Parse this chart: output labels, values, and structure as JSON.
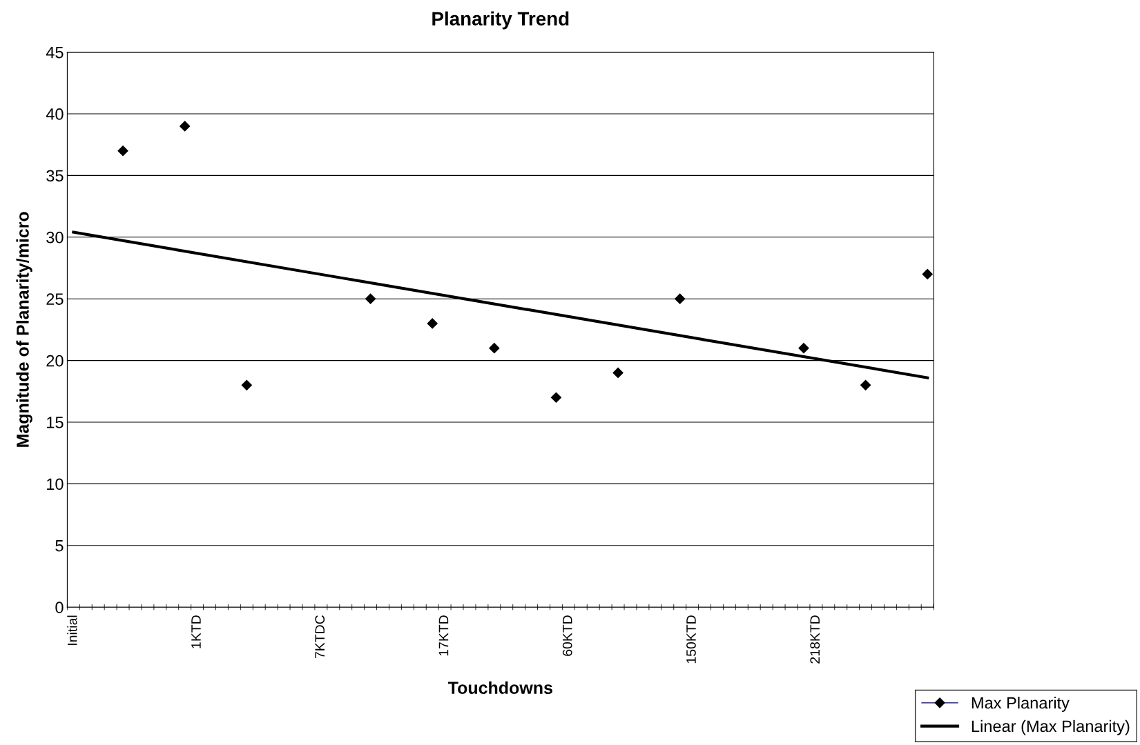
{
  "chart_data": {
    "type": "scatter",
    "title": "Planarity Trend",
    "xlabel": "Touchdowns",
    "ylabel": "Magnitude of Planarity/micro",
    "categories": [
      "Initial",
      null,
      null,
      null,
      null,
      null,
      null,
      null,
      null,
      null,
      "1KTD",
      null,
      null,
      null,
      null,
      null,
      null,
      null,
      null,
      null,
      "7KTDC",
      null,
      null,
      null,
      null,
      null,
      null,
      null,
      null,
      null,
      "17KTD",
      null,
      null,
      null,
      null,
      null,
      null,
      null,
      null,
      null,
      "60KTD",
      null,
      null,
      null,
      null,
      null,
      null,
      null,
      null,
      null,
      "150KTD",
      null,
      null,
      null,
      null,
      null,
      null,
      null,
      null,
      null,
      "218KTD",
      null,
      null,
      null,
      null,
      null,
      null,
      null,
      null,
      null
    ],
    "series": [
      {
        "name": "Max Planarity",
        "color": "#000000",
        "marker": "diamond",
        "values": [
          null,
          null,
          null,
          null,
          37,
          null,
          null,
          null,
          null,
          39,
          null,
          null,
          null,
          null,
          18,
          null,
          null,
          null,
          null,
          null,
          null,
          null,
          null,
          null,
          25,
          null,
          null,
          null,
          null,
          23,
          null,
          null,
          null,
          null,
          21,
          null,
          null,
          null,
          null,
          17,
          null,
          null,
          null,
          null,
          19,
          null,
          null,
          null,
          null,
          25,
          null,
          null,
          null,
          null,
          null,
          null,
          null,
          null,
          null,
          21,
          null,
          null,
          null,
          null,
          18,
          null,
          null,
          null,
          null,
          27
        ]
      },
      {
        "name": "Linear (Max Planarity)",
        "type": "line",
        "color": "#000000",
        "values": [
          30.4,
          null,
          null,
          null,
          null,
          null,
          null,
          null,
          null,
          null,
          null,
          null,
          null,
          null,
          null,
          null,
          null,
          null,
          null,
          null,
          null,
          null,
          null,
          null,
          null,
          null,
          null,
          null,
          null,
          null,
          null,
          null,
          null,
          null,
          null,
          null,
          null,
          null,
          null,
          null,
          null,
          null,
          null,
          null,
          null,
          null,
          null,
          null,
          null,
          null,
          null,
          null,
          null,
          null,
          null,
          null,
          null,
          null,
          null,
          null,
          null,
          null,
          null,
          null,
          null,
          null,
          null,
          null,
          null,
          18.6
        ]
      }
    ],
    "ylim": [
      0,
      45
    ],
    "yticks": [
      0,
      5,
      10,
      15,
      20,
      25,
      30,
      35,
      40,
      45
    ],
    "grid": "y",
    "legend": "bottom right"
  }
}
